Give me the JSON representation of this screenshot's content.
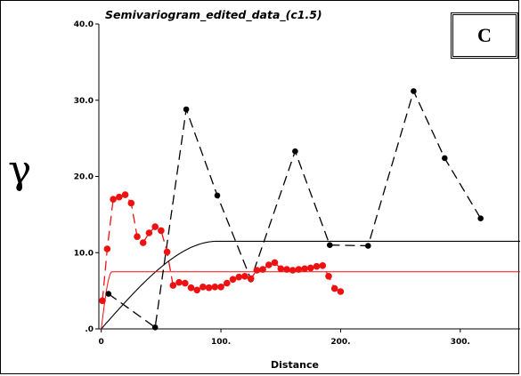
{
  "chart_data": {
    "type": "line",
    "title": "Semivariogram_edited_data_(c1.5)",
    "xlabel": "Distance",
    "ylabel": "γ",
    "xlim": [
      -2,
      350
    ],
    "ylim": [
      0,
      40
    ],
    "x_ticks": [
      "0",
      "100.",
      "200.",
      "300."
    ],
    "x_tick_values": [
      0,
      100,
      200,
      300
    ],
    "y_ticks": [
      ".0",
      "10.0",
      "20.0",
      "30.0",
      "40.0"
    ],
    "y_tick_values": [
      0,
      10,
      20,
      30,
      40
    ],
    "panel_label": "C",
    "grid": false,
    "series": [
      {
        "color": "#000000",
        "style": "dashed-with-points",
        "points": [
          [
            6,
            4.6
          ],
          [
            45,
            0.2
          ],
          [
            71,
            28.8
          ],
          [
            97,
            17.5
          ],
          [
            125,
            6.5
          ],
          [
            162,
            23.3
          ],
          [
            191,
            11.0
          ],
          [
            223,
            10.9
          ],
          [
            261,
            31.2
          ],
          [
            287,
            22.4
          ],
          [
            317,
            14.5
          ]
        ]
      },
      {
        "color": "#ee1111",
        "style": "dashed-with-points",
        "points": [
          [
            1,
            3.7
          ],
          [
            5,
            10.5
          ],
          [
            10,
            17.0
          ],
          [
            15,
            17.3
          ],
          [
            20,
            17.6
          ],
          [
            25,
            16.5
          ],
          [
            30,
            12.1
          ],
          [
            35,
            11.3
          ],
          [
            40,
            12.6
          ],
          [
            45,
            13.4
          ],
          [
            50,
            12.9
          ],
          [
            55,
            10.1
          ],
          [
            60,
            5.7
          ],
          [
            65,
            6.1
          ],
          [
            70,
            6.0
          ],
          [
            75,
            5.4
          ],
          [
            80,
            5.1
          ],
          [
            85,
            5.5
          ],
          [
            90,
            5.4
          ],
          [
            95,
            5.5
          ],
          [
            100,
            5.5
          ],
          [
            105,
            6.0
          ],
          [
            110,
            6.5
          ],
          [
            115,
            6.8
          ],
          [
            120,
            6.9
          ],
          [
            125,
            6.6
          ],
          [
            130,
            7.7
          ],
          [
            135,
            7.8
          ],
          [
            140,
            8.4
          ],
          [
            145,
            8.7
          ],
          [
            150,
            7.9
          ],
          [
            155,
            7.8
          ],
          [
            160,
            7.7
          ],
          [
            165,
            7.8
          ],
          [
            170,
            7.9
          ],
          [
            175,
            8.0
          ],
          [
            180,
            8.2
          ],
          [
            185,
            8.3
          ],
          [
            190,
            6.9
          ],
          [
            195,
            5.3
          ],
          [
            200,
            4.9
          ]
        ]
      },
      {
        "color": "#000000",
        "style": "solid",
        "model": "spherical",
        "nugget": 0,
        "sill": 11.5,
        "range": 97,
        "xmax": 350
      },
      {
        "color": "#ee1111",
        "style": "solid",
        "model": "spherical",
        "nugget": 0,
        "sill": 7.5,
        "range": 9,
        "xmax": 350
      }
    ]
  }
}
